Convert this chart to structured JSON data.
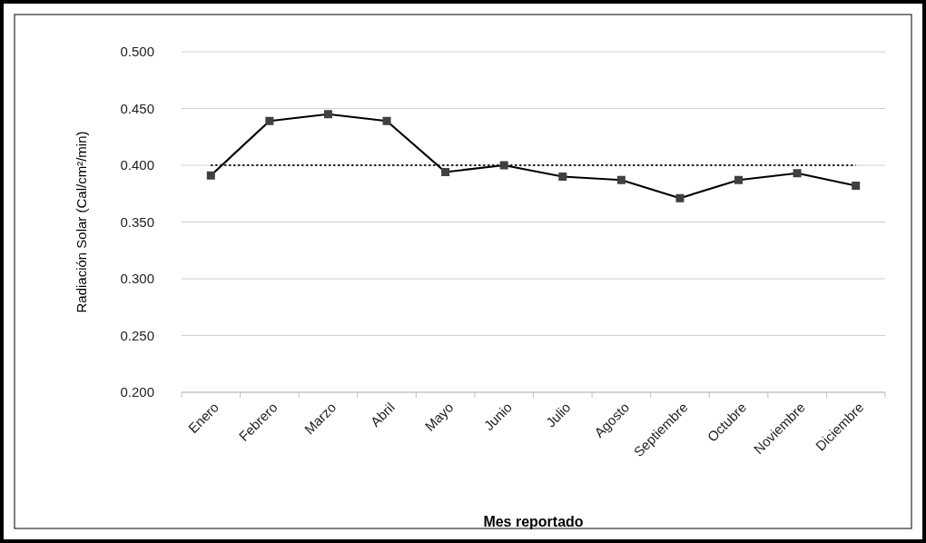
{
  "chart_data": {
    "type": "line",
    "xlabel": "Mes reportado",
    "ylabel": "Radiación Solar (Cal/cm²/min)",
    "categories": [
      "Enero",
      "Febrero",
      "Marzo",
      "Abril",
      "Mayo",
      "Junio",
      "Julio",
      "Agosto",
      "Septiembre",
      "Octubre",
      "Noviembre",
      "Diciembre"
    ],
    "series": [
      {
        "color": "#000000",
        "values": [
          0.391,
          0.439,
          0.445,
          0.439,
          0.394,
          0.4,
          0.39,
          0.387,
          0.371,
          0.387,
          0.393,
          0.382
        ]
      }
    ],
    "ylim": [
      0.2,
      0.5
    ],
    "yticks": [
      {
        "value": 0.2,
        "label": "0.200"
      },
      {
        "value": 0.25,
        "label": "0.250"
      },
      {
        "value": 0.3,
        "label": "0.300"
      },
      {
        "value": 0.35,
        "label": "0.350"
      },
      {
        "value": 0.4,
        "label": "0.400"
      },
      {
        "value": 0.45,
        "label": "0.450"
      },
      {
        "value": 0.5,
        "label": "0.500"
      }
    ],
    "ref_lines": [
      {
        "axis": "y",
        "value": 0.4,
        "color": "#000000",
        "line_style": "dotted"
      }
    ],
    "grid": "y",
    "marker": "square",
    "line_style": "solid"
  }
}
